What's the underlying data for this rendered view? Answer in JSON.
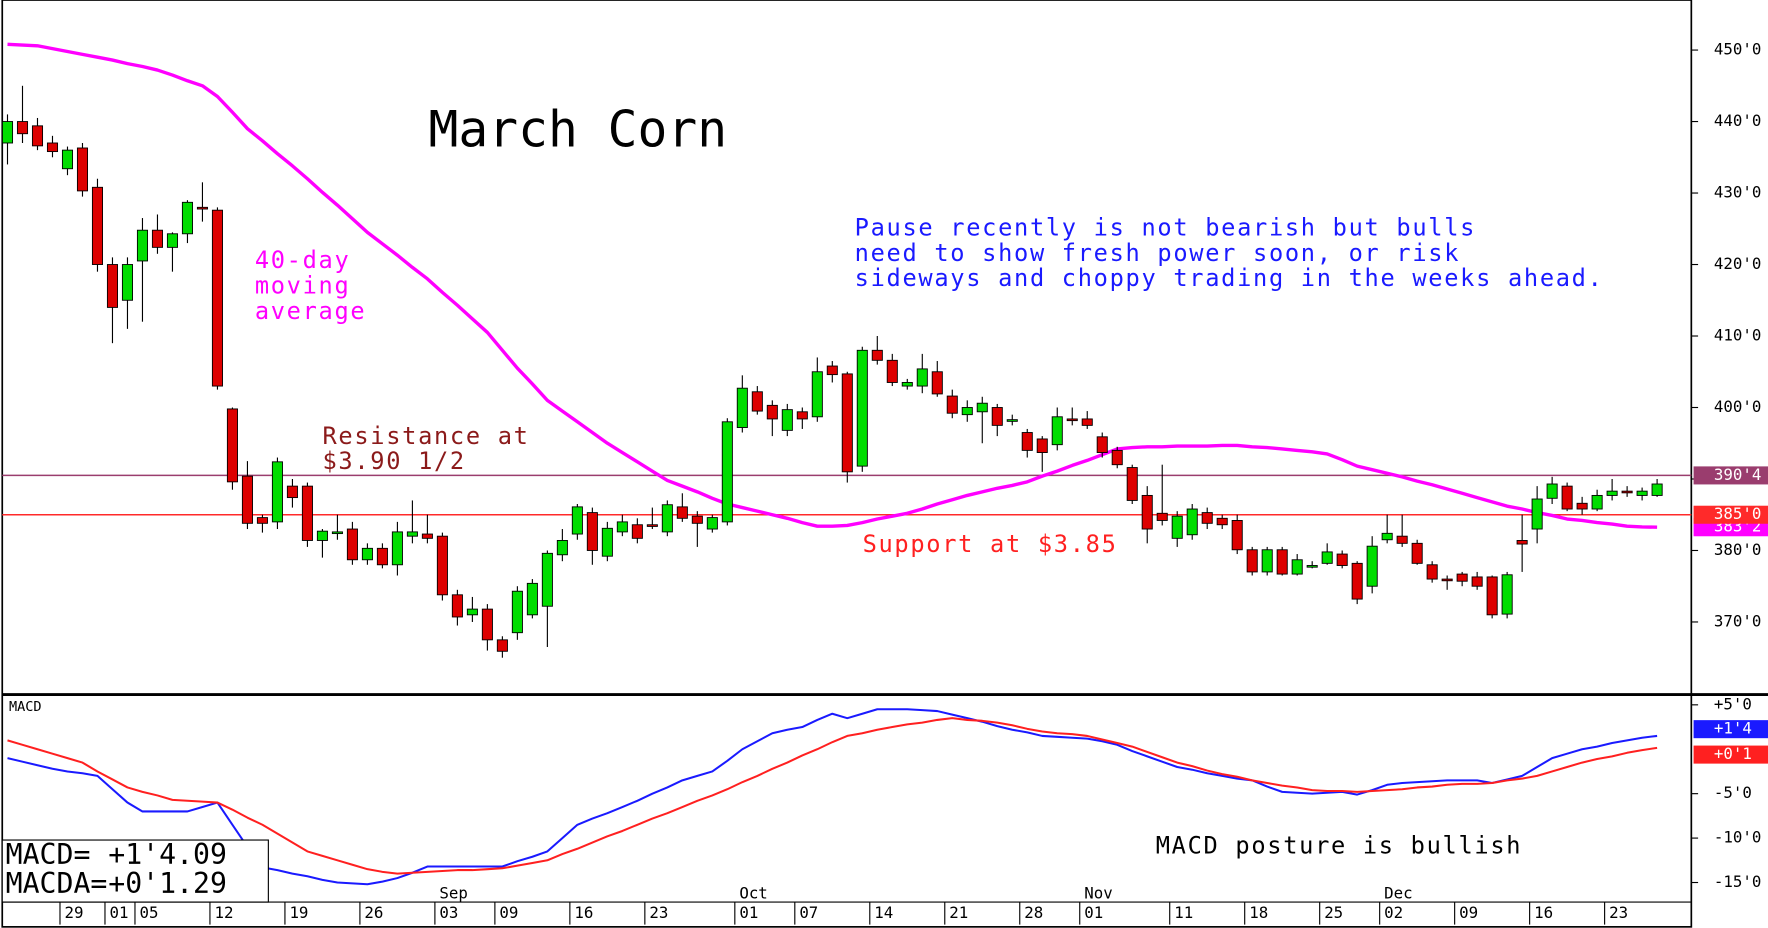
{
  "chart_data": {
    "type": "candlestick",
    "title": "March Corn",
    "categories": [
      null,
      null,
      null,
      null,
      "29",
      null,
      null,
      "01",
      null,
      "05",
      null,
      null,
      null,
      null,
      "12",
      null,
      null,
      null,
      null,
      "19",
      null,
      null,
      null,
      null,
      "26",
      null,
      null,
      null,
      null,
      "03",
      null,
      null,
      null,
      "09",
      null,
      null,
      null,
      null,
      "16",
      null,
      null,
      null,
      null,
      "23",
      null,
      null,
      null,
      null,
      null,
      "01",
      null,
      null,
      null,
      "07",
      null,
      null,
      null,
      null,
      "14",
      null,
      null,
      null,
      null,
      "21",
      null,
      null,
      null,
      null,
      "28",
      null,
      null,
      null,
      "01",
      null,
      null,
      null,
      null,
      null,
      "11",
      null,
      null,
      null,
      null,
      "18",
      null,
      null,
      null,
      null,
      "25",
      null,
      null,
      null,
      "02",
      null,
      null,
      null,
      null,
      "09",
      null,
      null,
      null,
      null,
      "16",
      null,
      null,
      null,
      null,
      "23",
      null,
      null,
      null
    ],
    "month_labels": [
      {
        "label": "Sep",
        "category": 29
      },
      {
        "label": "Oct",
        "category": 49
      },
      {
        "label": "Nov",
        "category": 72
      },
      {
        "label": "Dec",
        "category": 92
      }
    ],
    "open": [
      437,
      440,
      439.4,
      437,
      433.4,
      436.3,
      430.8,
      420,
      415,
      420.5,
      424.8,
      422.4,
      424.3,
      428,
      427.6,
      399.8,
      390.4,
      384.6,
      384,
      389,
      389,
      381.4,
      382.6,
      383,
      378.7,
      380.3,
      378,
      382,
      382.3,
      382,
      373.8,
      371,
      371.8,
      367.5,
      368.5,
      371,
      372.2,
      379.4,
      382.3,
      385.3,
      379.2,
      382.6,
      383.6,
      383.6,
      382.6,
      386.1,
      384.8,
      383,
      384,
      397.2,
      402.2,
      400.3,
      396.8,
      399.4,
      398.7,
      405.8,
      404.7,
      391.8,
      408,
      406.6,
      403,
      403,
      405,
      401.6,
      399,
      399.4,
      400,
      398.3,
      396.5,
      395.6,
      394.8,
      398.4,
      398.4,
      395.9,
      394,
      391.6,
      387.7,
      385.2,
      381.7,
      382.2,
      385.3,
      384.5,
      384.2,
      380.1,
      377,
      380.1,
      376.7,
      377.9,
      378.2,
      379.5,
      378.2,
      375,
      381.5,
      382,
      381,
      378,
      376,
      376.7,
      376.3,
      376.3,
      371.1,
      381.4,
      383,
      387.3,
      389,
      386.6,
      385.8,
      387.7,
      388.3,
      387.7,
      387.7
    ],
    "high": [
      441,
      445,
      440.5,
      438,
      436.5,
      437,
      432,
      421,
      421,
      426.5,
      427,
      424.5,
      429,
      431.5,
      428,
      400,
      392.5,
      385,
      393,
      390,
      389.5,
      383,
      385,
      384,
      381,
      381,
      384,
      387,
      385,
      382.5,
      374.5,
      373.5,
      372.5,
      368,
      375,
      376,
      380,
      383,
      386.5,
      386,
      384,
      385,
      384.5,
      386,
      387,
      388,
      385.5,
      385,
      398.5,
      404.5,
      403,
      401,
      400.5,
      400,
      407,
      406.5,
      405,
      408.5,
      410,
      407.5,
      404,
      407.5,
      406.5,
      402.5,
      401,
      401.5,
      400.5,
      399,
      397,
      396,
      400,
      400,
      399.5,
      396.5,
      394.5,
      392,
      389,
      392,
      385.5,
      386.5,
      386,
      385,
      385,
      380.5,
      380.5,
      380.5,
      379.5,
      378.5,
      381,
      380,
      378.5,
      382,
      385,
      385,
      381.5,
      378.5,
      376.5,
      377,
      377,
      376.5,
      377,
      385,
      389,
      390.3,
      389.5,
      387.5,
      388.5,
      390,
      389,
      388.8,
      390
    ],
    "low": [
      434,
      437,
      436,
      435,
      432.5,
      429.5,
      419,
      409,
      411,
      412,
      421.5,
      419,
      423,
      426,
      402.5,
      388.5,
      383,
      382.5,
      383,
      386,
      380.5,
      379,
      381.5,
      378,
      378,
      377.5,
      376.5,
      381,
      381,
      373,
      369.5,
      370,
      366,
      365,
      367.5,
      370.5,
      366.5,
      378.5,
      381.5,
      378,
      378.5,
      382,
      381,
      383,
      382,
      384,
      380.5,
      382.5,
      383.5,
      396.5,
      399,
      396,
      396,
      397,
      398,
      403.5,
      389.5,
      391,
      406,
      403,
      402.5,
      402,
      401.5,
      398.5,
      398,
      395,
      396,
      397.5,
      393,
      391,
      394,
      397.5,
      397,
      393,
      391.5,
      386.5,
      381,
      383.5,
      380.5,
      381.5,
      383,
      383,
      379.5,
      376.5,
      376.5,
      376.5,
      376.5,
      377.5,
      378,
      377.5,
      372.5,
      374,
      381,
      380.5,
      378,
      375.5,
      374.5,
      375,
      374.5,
      370.5,
      370.5,
      377,
      381,
      386.5,
      385.5,
      385,
      385.5,
      387,
      387.5,
      387,
      387.5
    ],
    "close": [
      440,
      438.3,
      436.6,
      435.8,
      436,
      430.3,
      420,
      414,
      420,
      424.8,
      422.4,
      424.3,
      428.7,
      427.8,
      403,
      389.6,
      383.8,
      383.8,
      392.4,
      387.4,
      381.4,
      382.7,
      382.6,
      378.7,
      380.3,
      378,
      382.6,
      382.6,
      381.7,
      373.8,
      370.7,
      371.8,
      367.5,
      365.9,
      374.3,
      375.4,
      379.6,
      381.4,
      386.1,
      380,
      383.1,
      384,
      381.7,
      383.5,
      386.4,
      384.5,
      383.8,
      384.6,
      398,
      402.7,
      399.5,
      398.4,
      399.7,
      398.4,
      405,
      404.6,
      391,
      408,
      406.6,
      403.5,
      403.5,
      405.4,
      401.9,
      399.2,
      400,
      400.6,
      397.5,
      398.3,
      394,
      393.7,
      398.7,
      398.3,
      397.5,
      393.7,
      392,
      387,
      383,
      384.2,
      384.8,
      385.8,
      383.8,
      383.6,
      380.1,
      377,
      380.1,
      376.7,
      378.7,
      377.9,
      379.8,
      377.9,
      373.2,
      380.6,
      382.4,
      381,
      378.2,
      376,
      375.9,
      375.7,
      375,
      371,
      376.6,
      380.9,
      387.2,
      389.3,
      385.8,
      385.8,
      387.7,
      388.3,
      388.2,
      388.3,
      389.3
    ],
    "up_color": "#00dd00",
    "down_color": "#dd0000",
    "ylim": [
      360,
      457
    ],
    "yticks": [
      {
        "value": 370,
        "label": "370'0"
      },
      {
        "value": 380,
        "label": "380'0"
      },
      {
        "value": 390,
        "label": "390'0"
      },
      {
        "value": 400,
        "label": "400'0"
      },
      {
        "value": 410,
        "label": "410'0"
      },
      {
        "value": 420,
        "label": "420'0"
      },
      {
        "value": 430,
        "label": "430'0"
      },
      {
        "value": 440,
        "label": "440'0"
      },
      {
        "value": 450,
        "label": "450'0"
      }
    ],
    "moving_average": {
      "color": "#ff00ff",
      "last_label": "383'2",
      "values": [
        450.8,
        450.7,
        450.6,
        450.2,
        449.8,
        449.4,
        449.0,
        448.6,
        448.1,
        447.7,
        447.2,
        446.5,
        445.7,
        445.0,
        443.5,
        441.3,
        439.0,
        437.3,
        435.5,
        433.8,
        432.0,
        430.1,
        428.3,
        426.4,
        424.5,
        422.9,
        421.3,
        419.6,
        418.0,
        416.1,
        414.3,
        412.4,
        410.5,
        408.0,
        405.5,
        403.3,
        401.0,
        399.5,
        398.0,
        396.5,
        395.0,
        393.7,
        392.4,
        391.1,
        389.8,
        389.0,
        388.2,
        387.3,
        386.5,
        386.0,
        385.5,
        385.0,
        384.5,
        383.9,
        383.4,
        383.4,
        383.5,
        383.9,
        384.4,
        384.8,
        385.2,
        385.8,
        386.5,
        387.1,
        387.7,
        388.2,
        388.7,
        389.1,
        389.6,
        390.4,
        391.1,
        391.9,
        392.6,
        393.4,
        394.2,
        394.4,
        394.5,
        394.5,
        394.6,
        394.6,
        394.6,
        394.7,
        394.7,
        394.5,
        394.4,
        394.2,
        394.0,
        393.8,
        393.5,
        392.7,
        391.8,
        391.3,
        390.8,
        390.3,
        389.7,
        389.2,
        388.6,
        388.0,
        387.4,
        386.8,
        386.2,
        385.8,
        385.3,
        384.9,
        384.4,
        384.2,
        383.9,
        383.7,
        383.4,
        383.3,
        383.25
      ]
    },
    "levels": [
      {
        "value": 390.5,
        "label": "390'4",
        "color": "#9a3d6e"
      },
      {
        "value": 385,
        "label": "385'0",
        "color": "#ff2a2a"
      }
    ],
    "annotations": [
      {
        "lines": [
          "40-day",
          "moving",
          "average"
        ],
        "color": "#ff00ff"
      },
      {
        "lines": [
          "Resistance at",
          "$3.90 1/2"
        ],
        "color": "#8b1a1a"
      },
      {
        "lines": [
          "Support at $3.85"
        ],
        "color": "#ff2020"
      },
      {
        "lines": [
          "Pause recently is not bearish but bulls",
          "need to show fresh power soon, or risk",
          "sideways and choppy trading in the weeks ahead."
        ],
        "color": "#1a1aff"
      },
      {
        "lines": [
          "MACD posture is bullish"
        ],
        "color": "#000000"
      }
    ],
    "macd": {
      "type": "line",
      "title": "MACD",
      "ylim": [
        -17.2,
        5.9
      ],
      "yticks": [
        {
          "value": 5,
          "label": "+5'0"
        },
        {
          "value": -5,
          "label": "-5'0"
        },
        {
          "value": -10,
          "label": "-10'0"
        },
        {
          "value": -15,
          "label": "-15'0"
        }
      ],
      "readout": [
        {
          "name": "MACD=",
          "label": "+1'4.09"
        },
        {
          "name": "MACDA=",
          "label": "+0'1.29"
        }
      ],
      "series": [
        {
          "color": "#1a1aff",
          "last_label": "+1'4",
          "values": [
            -1.0,
            -1.4,
            -1.8,
            -2.2,
            -2.5,
            -2.7,
            -3.0,
            -4.5,
            -6.0,
            -7.0,
            -7.0,
            -7.0,
            -7.0,
            -6.5,
            -6.0,
            -8.5,
            -11.0,
            -13.3,
            -13.6,
            -14.0,
            -14.3,
            -14.7,
            -15.0,
            -15.1,
            -15.2,
            -14.9,
            -14.5,
            -13.9,
            -13.2,
            -13.2,
            -13.2,
            -13.2,
            -13.2,
            -13.2,
            -12.6,
            -12.1,
            -11.5,
            -10.0,
            -8.5,
            -7.8,
            -7.2,
            -6.5,
            -5.8,
            -5.0,
            -4.3,
            -3.5,
            -3.0,
            -2.5,
            -1.3,
            0.0,
            0.9,
            1.8,
            2.2,
            2.5,
            3.3,
            4.0,
            3.5,
            4.0,
            4.5,
            4.5,
            4.5,
            4.4,
            4.3,
            3.9,
            3.5,
            3.1,
            2.6,
            2.2,
            1.9,
            1.5,
            1.4,
            1.3,
            1.2,
            0.9,
            0.5,
            -0.2,
            -0.8,
            -1.4,
            -2.0,
            -2.3,
            -2.7,
            -3.0,
            -3.3,
            -3.5,
            -4.2,
            -4.8,
            -4.9,
            -5.0,
            -4.9,
            -4.8,
            -5.1,
            -4.6,
            -4.0,
            -3.8,
            -3.7,
            -3.6,
            -3.5,
            -3.5,
            -3.5,
            -3.8,
            -3.4,
            -3.0,
            -2.0,
            -1.0,
            -0.5,
            0.0,
            0.3,
            0.7,
            1.0,
            1.3,
            1.5
          ]
        },
        {
          "color": "#ff2020",
          "last_label": "+0'1",
          "values": [
            1.0,
            0.5,
            0.0,
            -0.5,
            -1.0,
            -1.5,
            -2.5,
            -3.4,
            -4.3,
            -4.8,
            -5.2,
            -5.7,
            -5.8,
            -5.9,
            -6.0,
            -6.8,
            -7.7,
            -8.5,
            -9.5,
            -10.5,
            -11.5,
            -12.0,
            -12.5,
            -13.0,
            -13.5,
            -13.8,
            -14.0,
            -13.9,
            -13.8,
            -13.7,
            -13.6,
            -13.6,
            -13.5,
            -13.4,
            -13.1,
            -12.8,
            -12.5,
            -11.8,
            -11.2,
            -10.5,
            -9.8,
            -9.2,
            -8.5,
            -7.8,
            -7.2,
            -6.5,
            -5.8,
            -5.2,
            -4.5,
            -3.7,
            -3.0,
            -2.2,
            -1.5,
            -0.7,
            0.0,
            0.8,
            1.5,
            1.8,
            2.2,
            2.5,
            2.8,
            3.0,
            3.3,
            3.5,
            3.3,
            3.2,
            3.0,
            2.7,
            2.3,
            2.0,
            1.8,
            1.7,
            1.5,
            1.1,
            0.7,
            0.3,
            -0.3,
            -0.9,
            -1.5,
            -1.9,
            -2.4,
            -2.8,
            -3.1,
            -3.5,
            -3.8,
            -4.1,
            -4.3,
            -4.6,
            -4.7,
            -4.7,
            -4.8,
            -4.7,
            -4.6,
            -4.5,
            -4.3,
            -4.2,
            -4.0,
            -3.9,
            -3.9,
            -3.8,
            -3.5,
            -3.3,
            -3.0,
            -2.5,
            -2.0,
            -1.5,
            -1.1,
            -0.8,
            -0.4,
            -0.1,
            0.16
          ]
        }
      ]
    }
  }
}
